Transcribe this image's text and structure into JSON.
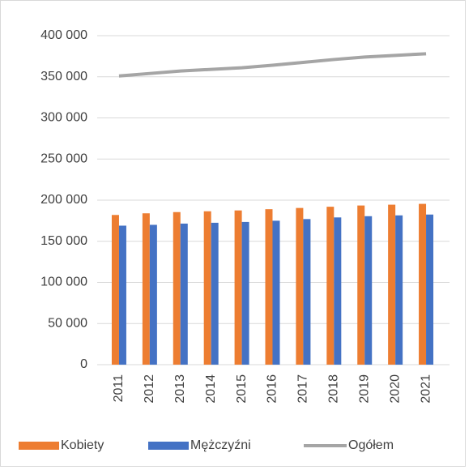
{
  "chart_data": {
    "type": "bar",
    "categories": [
      "2011",
      "2012",
      "2013",
      "2014",
      "2015",
      "2016",
      "2017",
      "2018",
      "2019",
      "2020",
      "2021"
    ],
    "series": [
      {
        "name": "Kobiety",
        "color": "#ed7d31",
        "type": "bar",
        "values": [
          182000,
          184000,
          185500,
          186500,
          187500,
          189000,
          190500,
          192000,
          193500,
          194500,
          195500
        ]
      },
      {
        "name": "Mężczyźni",
        "color": "#4472c4",
        "type": "bar",
        "values": [
          169000,
          170000,
          171500,
          172500,
          173500,
          175000,
          177000,
          179000,
          180500,
          181500,
          182500
        ]
      },
      {
        "name": "Ogółem",
        "color": "#a5a5a5",
        "type": "line",
        "values": [
          351000,
          354000,
          357000,
          359000,
          361000,
          364000,
          367500,
          371000,
          374000,
          376000,
          378000
        ]
      }
    ],
    "ylim": [
      0,
      400000
    ],
    "yticks": [
      0,
      {
        "value": 50000,
        "label": "50 000"
      },
      {
        "value": 100000,
        "label": "100 000"
      },
      {
        "value": 150000,
        "label": "150 000"
      },
      {
        "value": 200000,
        "label": "200 000"
      },
      {
        "value": 250000,
        "label": "250 000"
      },
      {
        "value": 300000,
        "label": "300 000"
      },
      {
        "value": 350000,
        "label": "350 000"
      },
      {
        "value": 400000,
        "label": "400 000"
      }
    ],
    "grid": true,
    "legend": "bottom"
  }
}
